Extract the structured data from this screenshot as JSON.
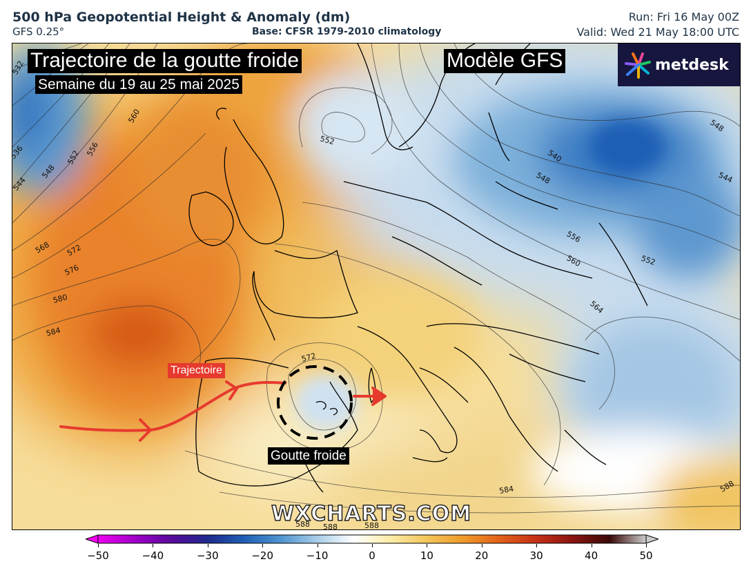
{
  "header": {
    "title": "500 hPa Geopotential Height & Anomaly (dm)",
    "model": "GFS 0.25°",
    "base": "Base: CFSR 1979-2010 climatology",
    "run": "Run: Fri 16 May 00Z",
    "valid": "Valid: Wed 21 May 18:00 UTC"
  },
  "overlay": {
    "title": "Trajectoire de la goutte froide",
    "week": "Semaine du 19 au 25 mai 2025",
    "model_label": "Modèle GFS",
    "trajectory_label": "Trajectoire",
    "cold_drop_label": "Goutte froide",
    "logo_text": "metdesk",
    "watermark": "WXCHARTS.COM"
  },
  "contour_labels": [
    "532",
    "536",
    "544",
    "548",
    "552",
    "556",
    "560",
    "568",
    "572",
    "576",
    "580",
    "584",
    "552",
    "572",
    "548",
    "544",
    "540",
    "548",
    "556",
    "560",
    "552",
    "564",
    "584",
    "588",
    "588",
    "588",
    "588"
  ],
  "colorbar": {
    "min": -50,
    "max": 50,
    "ticks": [
      "−50",
      "−40",
      "−30",
      "−20",
      "−10",
      "0",
      "10",
      "20",
      "30",
      "40",
      "50"
    ],
    "colors": [
      "#f000f0",
      "#a000c8",
      "#5a0a9a",
      "#1e2a8c",
      "#1f5fb5",
      "#4f94d0",
      "#a8cde8",
      "#ffffff",
      "#fbeca8",
      "#f3c55a",
      "#ee9a2a",
      "#e2601a",
      "#c63116",
      "#8a1410",
      "#3a0a08",
      "#cccccc"
    ]
  },
  "accent_colors": {
    "arrow": "#e63a2e",
    "logo_bg": "#16163f",
    "text": "#1f3346"
  }
}
